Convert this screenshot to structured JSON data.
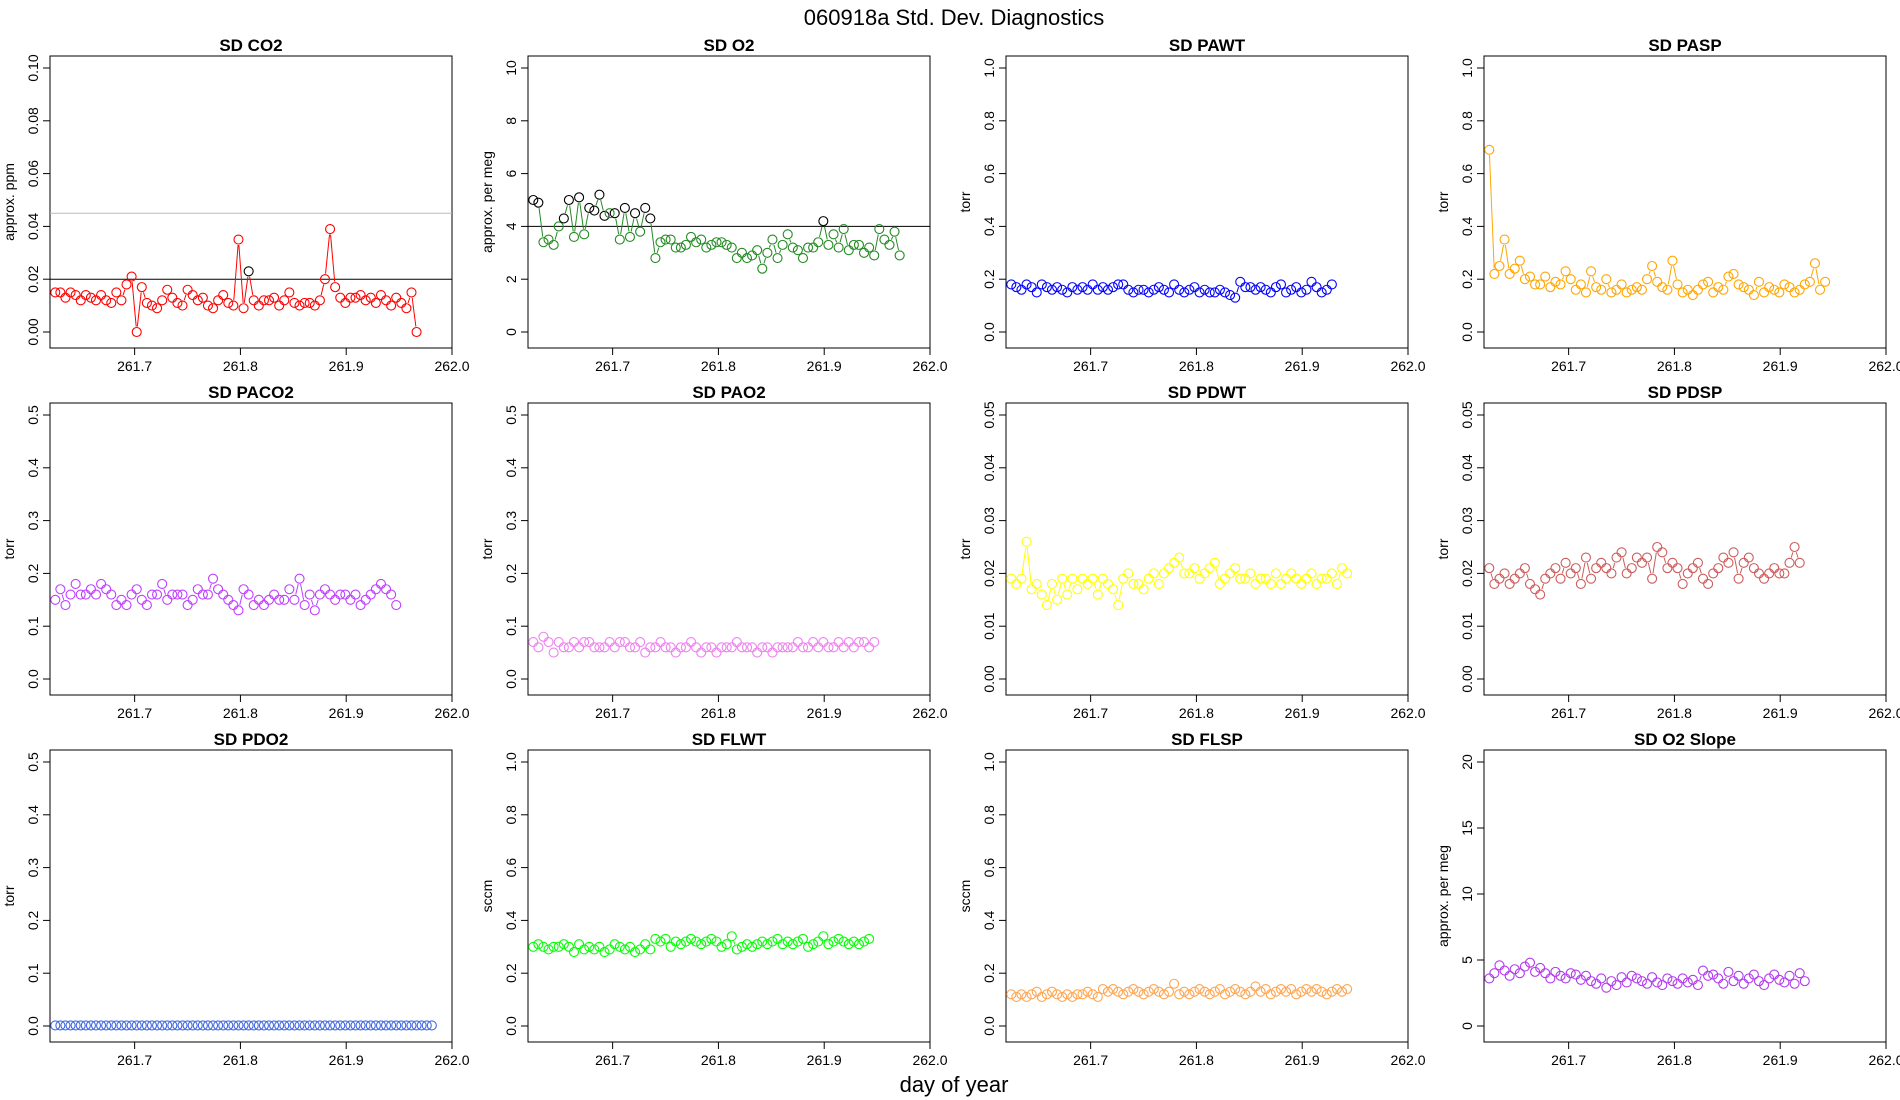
{
  "figure": {
    "title": "060918a   Std. Dev. Diagnostics",
    "xlabel": "day of year"
  },
  "chart_data": [
    {
      "type": "scatter",
      "title": "SD CO2",
      "ylabel": "approx. ppm",
      "color": "#ff0000",
      "xlim": [
        261.62,
        262.0
      ],
      "ylim": [
        0,
        0.1
      ],
      "yticks": [
        "0.00",
        "0.02",
        "0.04",
        "0.06",
        "0.08",
        "0.10"
      ],
      "xticks": [
        "261.7",
        "261.8",
        "261.9",
        "262.0"
      ],
      "hlines": [
        {
          "y": 0.02,
          "color": "#000000"
        },
        {
          "y": 0.045,
          "color": "#bbbbbb"
        }
      ],
      "x0": 261.625,
      "dx": 0.00481,
      "values": [
        0.015,
        0.015,
        0.013,
        0.015,
        0.014,
        0.012,
        0.014,
        0.013,
        0.012,
        0.014,
        0.012,
        0.011,
        0.015,
        0.012,
        0.018,
        0.021,
        0.0,
        0.017,
        0.011,
        0.01,
        0.009,
        0.012,
        0.016,
        0.013,
        0.011,
        0.01,
        0.016,
        0.014,
        0.012,
        0.013,
        0.01,
        0.009,
        0.012,
        0.014,
        0.011,
        0.01,
        0.035,
        0.009,
        0.023,
        0.012,
        0.01,
        0.012,
        0.012,
        0.013,
        0.01,
        0.012,
        0.015,
        0.011,
        0.01,
        0.011,
        0.011,
        0.01,
        0.012,
        0.02,
        0.039,
        0.017,
        0.013,
        0.011,
        0.013,
        0.013,
        0.014,
        0.012,
        0.013,
        0.011,
        0.014,
        0.012,
        0.01,
        0.013,
        0.011,
        0.009,
        0.015,
        0.0
      ],
      "highlight": [
        {
          "i": 38,
          "color": "#000000"
        }
      ]
    },
    {
      "type": "scatter",
      "title": "SD O2",
      "ylabel": "approx. per meg",
      "color": "#228b22",
      "xlim": [
        261.62,
        262.0
      ],
      "ylim": [
        0,
        10
      ],
      "yticks": [
        "0",
        "2",
        "4",
        "6",
        "8",
        "10"
      ],
      "xticks": [
        "261.7",
        "261.8",
        "261.9",
        "262.0"
      ],
      "hlines": [
        {
          "y": 4.0,
          "color": "#000000"
        }
      ],
      "x0": 261.625,
      "dx": 0.00481,
      "values": [
        5.0,
        4.9,
        3.4,
        3.5,
        3.3,
        4.0,
        4.3,
        5.0,
        3.6,
        5.1,
        3.7,
        4.7,
        4.6,
        5.2,
        4.4,
        4.5,
        4.5,
        3.5,
        4.7,
        3.6,
        4.5,
        3.8,
        4.7,
        4.3,
        2.8,
        3.4,
        3.5,
        3.5,
        3.2,
        3.2,
        3.3,
        3.6,
        3.4,
        3.5,
        3.2,
        3.3,
        3.4,
        3.4,
        3.3,
        3.2,
        2.8,
        3.0,
        2.8,
        2.9,
        3.1,
        2.4,
        3.0,
        3.5,
        2.8,
        3.3,
        3.7,
        3.2,
        3.1,
        2.8,
        3.2,
        3.2,
        3.4,
        4.2,
        3.3,
        3.7,
        3.2,
        3.9,
        3.1,
        3.3,
        3.3,
        3.0,
        3.2,
        2.9,
        3.9,
        3.5,
        3.3,
        3.8,
        2.9
      ],
      "highlight": [
        {
          "i": 0,
          "color": "#000000"
        },
        {
          "i": 1,
          "color": "#000000"
        },
        {
          "i": 6,
          "color": "#000000"
        },
        {
          "i": 7,
          "color": "#000000"
        },
        {
          "i": 9,
          "color": "#000000"
        },
        {
          "i": 11,
          "color": "#000000"
        },
        {
          "i": 12,
          "color": "#000000"
        },
        {
          "i": 13,
          "color": "#000000"
        },
        {
          "i": 14,
          "color": "#000000"
        },
        {
          "i": 16,
          "color": "#000000"
        },
        {
          "i": 18,
          "color": "#000000"
        },
        {
          "i": 20,
          "color": "#000000"
        },
        {
          "i": 22,
          "color": "#000000"
        },
        {
          "i": 23,
          "color": "#000000"
        },
        {
          "i": 57,
          "color": "#000000"
        }
      ]
    },
    {
      "type": "scatter",
      "title": "SD PAWT",
      "ylabel": "torr",
      "color": "#0000ff",
      "xlim": [
        261.62,
        262.0
      ],
      "ylim": [
        0,
        1.0
      ],
      "yticks": [
        "0.0",
        "0.2",
        "0.4",
        "0.6",
        "0.8",
        "1.0"
      ],
      "xticks": [
        "261.7",
        "261.8",
        "261.9",
        "262.0"
      ],
      "x0": 261.625,
      "dx": 0.00481,
      "values": [
        0.18,
        0.17,
        0.16,
        0.18,
        0.17,
        0.15,
        0.18,
        0.17,
        0.16,
        0.17,
        0.16,
        0.15,
        0.17,
        0.16,
        0.17,
        0.16,
        0.18,
        0.16,
        0.17,
        0.16,
        0.17,
        0.18,
        0.18,
        0.16,
        0.15,
        0.16,
        0.16,
        0.15,
        0.16,
        0.17,
        0.16,
        0.15,
        0.18,
        0.16,
        0.15,
        0.16,
        0.17,
        0.15,
        0.16,
        0.15,
        0.15,
        0.16,
        0.15,
        0.14,
        0.13,
        0.19,
        0.17,
        0.17,
        0.16,
        0.17,
        0.16,
        0.15,
        0.17,
        0.18,
        0.15,
        0.16,
        0.17,
        0.15,
        0.16,
        0.19,
        0.17,
        0.15,
        0.16,
        0.18
      ]
    },
    {
      "type": "scatter",
      "title": "SD PASP",
      "ylabel": "torr",
      "color": "#ffa500",
      "xlim": [
        261.62,
        262.0
      ],
      "ylim": [
        0,
        1.0
      ],
      "yticks": [
        "0.0",
        "0.2",
        "0.4",
        "0.6",
        "0.8",
        "1.0"
      ],
      "xticks": [
        "261.7",
        "261.8",
        "261.9",
        "262.0"
      ],
      "x0": 261.625,
      "dx": 0.00481,
      "values": [
        0.69,
        0.22,
        0.25,
        0.35,
        0.22,
        0.24,
        0.27,
        0.2,
        0.21,
        0.18,
        0.18,
        0.21,
        0.17,
        0.19,
        0.18,
        0.23,
        0.2,
        0.16,
        0.18,
        0.15,
        0.23,
        0.17,
        0.16,
        0.2,
        0.15,
        0.16,
        0.18,
        0.15,
        0.16,
        0.17,
        0.16,
        0.2,
        0.25,
        0.19,
        0.17,
        0.16,
        0.27,
        0.18,
        0.15,
        0.16,
        0.14,
        0.16,
        0.18,
        0.19,
        0.15,
        0.17,
        0.16,
        0.21,
        0.22,
        0.18,
        0.17,
        0.16,
        0.14,
        0.19,
        0.15,
        0.17,
        0.16,
        0.15,
        0.18,
        0.17,
        0.15,
        0.16,
        0.18,
        0.19,
        0.26,
        0.16,
        0.19
      ]
    },
    {
      "type": "scatter",
      "title": "SD PACO2",
      "ylabel": "torr",
      "color": "#bf3eff",
      "xlim": [
        261.62,
        262.0
      ],
      "ylim": [
        0,
        0.5
      ],
      "yticks": [
        "0.0",
        "0.1",
        "0.2",
        "0.3",
        "0.4",
        "0.5"
      ],
      "xticks": [
        "261.7",
        "261.8",
        "261.9",
        "262.0"
      ],
      "x0": 261.625,
      "dx": 0.00481,
      "values": [
        0.15,
        0.17,
        0.14,
        0.16,
        0.18,
        0.16,
        0.16,
        0.17,
        0.16,
        0.18,
        0.17,
        0.16,
        0.14,
        0.15,
        0.14,
        0.16,
        0.17,
        0.15,
        0.14,
        0.16,
        0.16,
        0.18,
        0.15,
        0.16,
        0.16,
        0.16,
        0.14,
        0.15,
        0.17,
        0.16,
        0.16,
        0.19,
        0.17,
        0.16,
        0.15,
        0.14,
        0.13,
        0.17,
        0.16,
        0.14,
        0.15,
        0.14,
        0.15,
        0.16,
        0.15,
        0.15,
        0.17,
        0.15,
        0.19,
        0.14,
        0.16,
        0.13,
        0.16,
        0.17,
        0.16,
        0.15,
        0.16,
        0.16,
        0.15,
        0.16,
        0.14,
        0.15,
        0.16,
        0.17,
        0.18,
        0.17,
        0.16,
        0.14
      ]
    },
    {
      "type": "scatter",
      "title": "SD PAO2",
      "ylabel": "torr",
      "color": "#ee82ee",
      "xlim": [
        261.62,
        262.0
      ],
      "ylim": [
        0,
        0.5
      ],
      "yticks": [
        "0.0",
        "0.1",
        "0.2",
        "0.3",
        "0.4",
        "0.5"
      ],
      "xticks": [
        "261.7",
        "261.8",
        "261.9",
        "262.0"
      ],
      "x0": 261.625,
      "dx": 0.00481,
      "values": [
        0.07,
        0.06,
        0.08,
        0.07,
        0.05,
        0.07,
        0.06,
        0.06,
        0.07,
        0.06,
        0.07,
        0.07,
        0.06,
        0.06,
        0.06,
        0.07,
        0.06,
        0.07,
        0.07,
        0.06,
        0.06,
        0.07,
        0.05,
        0.06,
        0.06,
        0.07,
        0.06,
        0.06,
        0.05,
        0.06,
        0.06,
        0.07,
        0.06,
        0.05,
        0.06,
        0.06,
        0.05,
        0.06,
        0.06,
        0.06,
        0.07,
        0.06,
        0.06,
        0.06,
        0.05,
        0.06,
        0.06,
        0.05,
        0.06,
        0.06,
        0.06,
        0.06,
        0.07,
        0.06,
        0.06,
        0.07,
        0.06,
        0.07,
        0.06,
        0.06,
        0.07,
        0.06,
        0.07,
        0.06,
        0.07,
        0.07,
        0.06,
        0.07
      ]
    },
    {
      "type": "scatter",
      "title": "SD PDWT",
      "ylabel": "torr",
      "color": "#ffff00",
      "xlim": [
        261.62,
        262.0
      ],
      "ylim": [
        0,
        0.05
      ],
      "yticks": [
        "0.00",
        "0.01",
        "0.02",
        "0.03",
        "0.04",
        "0.05"
      ],
      "xticks": [
        "261.7",
        "261.8",
        "261.9",
        "262.0"
      ],
      "x0": 261.625,
      "dx": 0.00481,
      "values": [
        0.019,
        0.018,
        0.019,
        0.026,
        0.017,
        0.018,
        0.016,
        0.014,
        0.018,
        0.015,
        0.019,
        0.016,
        0.019,
        0.017,
        0.019,
        0.018,
        0.019,
        0.016,
        0.019,
        0.018,
        0.017,
        0.014,
        0.019,
        0.02,
        0.018,
        0.018,
        0.017,
        0.019,
        0.02,
        0.018,
        0.02,
        0.021,
        0.022,
        0.023,
        0.02,
        0.02,
        0.021,
        0.019,
        0.02,
        0.021,
        0.022,
        0.018,
        0.019,
        0.02,
        0.021,
        0.019,
        0.019,
        0.02,
        0.018,
        0.019,
        0.019,
        0.018,
        0.02,
        0.018,
        0.019,
        0.02,
        0.019,
        0.018,
        0.019,
        0.02,
        0.018,
        0.019,
        0.019,
        0.02,
        0.018,
        0.021,
        0.02
      ]
    },
    {
      "type": "scatter",
      "title": "SD PDSP",
      "ylabel": "torr",
      "color": "#cd5c5c",
      "xlim": [
        261.62,
        262.0
      ],
      "ylim": [
        0,
        0.05
      ],
      "yticks": [
        "0.00",
        "0.01",
        "0.02",
        "0.03",
        "0.04",
        "0.05"
      ],
      "xticks": [
        "261.7",
        "261.8",
        "261.9",
        "262.0"
      ],
      "x0": 261.625,
      "dx": 0.00481,
      "values": [
        0.021,
        0.018,
        0.019,
        0.02,
        0.018,
        0.019,
        0.02,
        0.021,
        0.018,
        0.017,
        0.016,
        0.019,
        0.02,
        0.021,
        0.019,
        0.022,
        0.02,
        0.021,
        0.018,
        0.023,
        0.019,
        0.021,
        0.022,
        0.021,
        0.02,
        0.023,
        0.024,
        0.02,
        0.021,
        0.023,
        0.022,
        0.023,
        0.019,
        0.025,
        0.024,
        0.021,
        0.022,
        0.021,
        0.018,
        0.02,
        0.021,
        0.022,
        0.019,
        0.018,
        0.02,
        0.021,
        0.023,
        0.022,
        0.024,
        0.019,
        0.022,
        0.023,
        0.021,
        0.02,
        0.019,
        0.02,
        0.021,
        0.02,
        0.02,
        0.022,
        0.025,
        0.022
      ]
    },
    {
      "type": "scatter",
      "title": "SD PDO2",
      "ylabel": "torr",
      "color": "#4169e1",
      "xlim": [
        261.62,
        262.0
      ],
      "ylim": [
        0,
        0.5
      ],
      "yticks": [
        "0.0",
        "0.1",
        "0.2",
        "0.3",
        "0.4",
        "0.5"
      ],
      "xticks": [
        "261.7",
        "261.8",
        "261.9",
        "262.0"
      ],
      "x0": 261.625,
      "dx": 0.00481,
      "values": [
        0.001,
        0.001,
        0.001,
        0.001,
        0.001,
        0.001,
        0.001,
        0.001,
        0.001,
        0.001,
        0.001,
        0.001,
        0.001,
        0.001,
        0.001,
        0.001,
        0.001,
        0.001,
        0.001,
        0.001,
        0.001,
        0.001,
        0.001,
        0.001,
        0.001,
        0.001,
        0.001,
        0.001,
        0.001,
        0.001,
        0.001,
        0.001,
        0.001,
        0.001,
        0.001,
        0.001,
        0.001,
        0.001,
        0.001,
        0.001,
        0.001,
        0.001,
        0.001,
        0.001,
        0.001,
        0.001,
        0.001,
        0.001,
        0.001,
        0.001,
        0.001,
        0.001,
        0.001,
        0.001,
        0.001,
        0.001,
        0.001,
        0.001,
        0.001,
        0.001,
        0.001,
        0.001,
        0.001,
        0.001,
        0.001,
        0.001,
        0.001,
        0.001,
        0.001,
        0.001,
        0.001,
        0.001,
        0.001,
        0.001,
        0.001
      ]
    },
    {
      "type": "scatter",
      "title": "SD FLWT",
      "ylabel": "sccm",
      "color": "#00ff00",
      "xlim": [
        261.62,
        262.0
      ],
      "ylim": [
        0,
        1.0
      ],
      "yticks": [
        "0.0",
        "0.2",
        "0.4",
        "0.6",
        "0.8",
        "1.0"
      ],
      "xticks": [
        "261.7",
        "261.8",
        "261.9",
        "262.0"
      ],
      "x0": 261.625,
      "dx": 0.00481,
      "values": [
        0.3,
        0.31,
        0.3,
        0.29,
        0.3,
        0.3,
        0.31,
        0.3,
        0.28,
        0.31,
        0.29,
        0.3,
        0.29,
        0.3,
        0.28,
        0.29,
        0.31,
        0.3,
        0.29,
        0.3,
        0.28,
        0.29,
        0.31,
        0.29,
        0.33,
        0.32,
        0.33,
        0.3,
        0.32,
        0.31,
        0.32,
        0.33,
        0.32,
        0.31,
        0.32,
        0.33,
        0.32,
        0.3,
        0.31,
        0.34,
        0.29,
        0.3,
        0.31,
        0.3,
        0.31,
        0.32,
        0.31,
        0.32,
        0.33,
        0.31,
        0.32,
        0.31,
        0.32,
        0.33,
        0.3,
        0.31,
        0.32,
        0.34,
        0.31,
        0.32,
        0.33,
        0.32,
        0.31,
        0.32,
        0.31,
        0.32,
        0.33
      ]
    },
    {
      "type": "scatter",
      "title": "SD FLSP",
      "ylabel": "sccm",
      "color": "#ffa54f",
      "xlim": [
        261.62,
        262.0
      ],
      "ylim": [
        0,
        1.0
      ],
      "yticks": [
        "0.0",
        "0.2",
        "0.4",
        "0.6",
        "0.8",
        "1.0"
      ],
      "xticks": [
        "261.7",
        "261.8",
        "261.9",
        "262.0"
      ],
      "x0": 261.625,
      "dx": 0.00481,
      "values": [
        0.12,
        0.11,
        0.12,
        0.11,
        0.12,
        0.13,
        0.11,
        0.12,
        0.13,
        0.12,
        0.11,
        0.12,
        0.11,
        0.12,
        0.12,
        0.13,
        0.12,
        0.11,
        0.14,
        0.13,
        0.14,
        0.13,
        0.12,
        0.13,
        0.14,
        0.13,
        0.12,
        0.13,
        0.14,
        0.13,
        0.12,
        0.13,
        0.16,
        0.12,
        0.13,
        0.12,
        0.13,
        0.14,
        0.13,
        0.12,
        0.13,
        0.14,
        0.12,
        0.13,
        0.14,
        0.13,
        0.12,
        0.13,
        0.15,
        0.13,
        0.14,
        0.12,
        0.13,
        0.14,
        0.13,
        0.14,
        0.12,
        0.13,
        0.14,
        0.13,
        0.14,
        0.13,
        0.12,
        0.13,
        0.14,
        0.13,
        0.14
      ]
    },
    {
      "type": "scatter",
      "title": "SD O2 Slope",
      "ylabel": "approx. per meg",
      "color": "#b23aee",
      "xlim": [
        261.62,
        262.0
      ],
      "ylim": [
        0,
        20
      ],
      "yticks": [
        "0",
        "5",
        "10",
        "15",
        "20"
      ],
      "xticks": [
        "261.7",
        "261.8",
        "261.9",
        "262.0"
      ],
      "x0": 261.625,
      "dx": 0.00481,
      "values": [
        3.6,
        4.0,
        4.6,
        4.2,
        3.8,
        4.3,
        4.0,
        4.5,
        4.8,
        4.1,
        4.4,
        4.0,
        3.6,
        4.1,
        3.8,
        3.6,
        4.0,
        3.9,
        3.5,
        3.8,
        3.4,
        3.2,
        3.6,
        2.9,
        3.4,
        3.1,
        3.7,
        3.3,
        3.8,
        3.6,
        3.4,
        3.2,
        3.7,
        3.3,
        3.1,
        3.6,
        3.4,
        3.2,
        3.6,
        3.3,
        3.5,
        3.1,
        4.2,
        3.8,
        3.9,
        3.6,
        3.2,
        4.1,
        3.4,
        3.8,
        3.2,
        3.6,
        3.9,
        3.4,
        3.1,
        3.6,
        3.9,
        3.5,
        3.3,
        3.8,
        3.2,
        4.0,
        3.4
      ]
    }
  ]
}
